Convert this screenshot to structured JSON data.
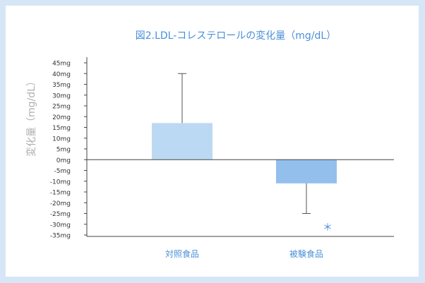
{
  "chart_data": {
    "type": "bar",
    "title": "図2.LDL-コレステロールの変化量（mg/dL）",
    "ylabel": "変化量（mg/dL）",
    "xlabel": "",
    "categories": [
      "対照食品",
      "被験食品"
    ],
    "values": [
      17,
      -11
    ],
    "error_bars": [
      {
        "category": "対照食品",
        "upper": 40
      },
      {
        "category": "被験食品",
        "lower": -25
      }
    ],
    "ylim": [
      -35,
      45
    ],
    "yticks": [
      45,
      40,
      35,
      30,
      25,
      20,
      15,
      10,
      5,
      0,
      -5,
      -10,
      -15,
      -20,
      -25,
      -30,
      -35
    ],
    "ytick_labels": [
      "45mg",
      "40mg",
      "35mg",
      "30mg",
      "25mg",
      "20mg",
      "15mg",
      "10mg",
      "5mg",
      "0mg",
      "-5mg",
      "-10mg",
      "-15mg",
      "-20mg",
      "-25mg",
      "-30mg",
      "-35mg"
    ],
    "annotations": [
      {
        "category": "被験食品",
        "text": "＊"
      }
    ],
    "grid": false,
    "colors": {
      "background": "#d6e6f7",
      "bar_1": "#bcd9f3",
      "bar_2": "#93bfed",
      "title": "#4a8fd8",
      "category_label": "#4a8fd8",
      "ylabel": "#b0b0b0",
      "axis": "#444444",
      "annotation": "#4a8fd8"
    }
  }
}
